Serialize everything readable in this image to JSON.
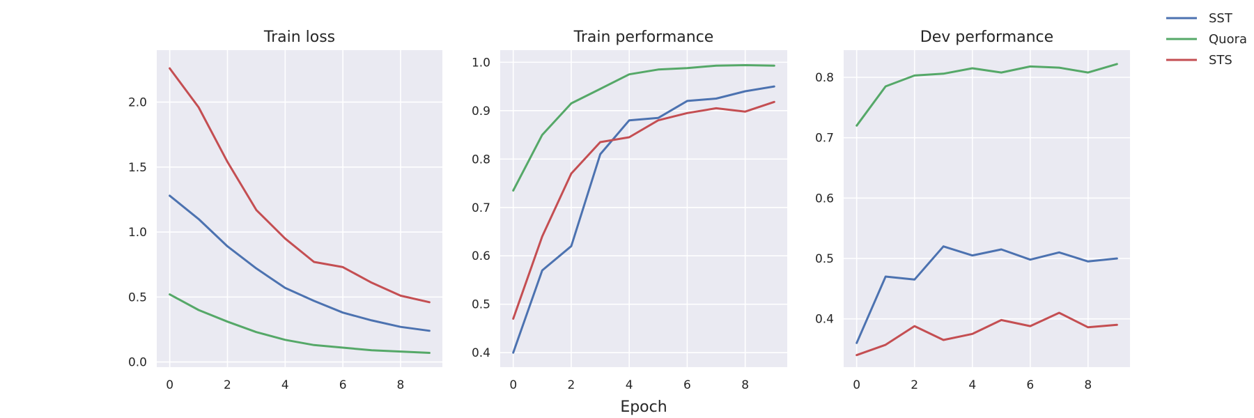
{
  "chart_data": [
    {
      "type": "line",
      "title": "Train loss",
      "xlabel": "",
      "ylabel": "",
      "x": [
        0,
        1,
        2,
        3,
        4,
        5,
        6,
        7,
        8,
        9
      ],
      "xlim": [
        -0.45,
        9.45
      ],
      "ylim": [
        -0.04,
        2.4
      ],
      "xticks": [
        0,
        2,
        4,
        6,
        8
      ],
      "yticks": [
        0.0,
        0.5,
        1.0,
        1.5,
        2.0
      ],
      "ytick_labels": [
        "0.0",
        "0.5",
        "1.0",
        "1.5",
        "2.0"
      ],
      "grid": true,
      "series": [
        {
          "name": "SST",
          "color": "#4c72b0",
          "values": [
            1.28,
            1.1,
            0.89,
            0.72,
            0.57,
            0.47,
            0.38,
            0.32,
            0.27,
            0.24
          ]
        },
        {
          "name": "Quora",
          "color": "#55a868",
          "values": [
            0.52,
            0.4,
            0.31,
            0.23,
            0.17,
            0.13,
            0.11,
            0.09,
            0.08,
            0.07
          ]
        },
        {
          "name": "STS",
          "color": "#c44e52",
          "values": [
            2.26,
            1.96,
            1.54,
            1.17,
            0.95,
            0.77,
            0.73,
            0.61,
            0.51,
            0.46
          ]
        }
      ]
    },
    {
      "type": "line",
      "title": "Train performance",
      "xlabel": "Epoch",
      "ylabel": "",
      "x": [
        0,
        1,
        2,
        3,
        4,
        5,
        6,
        7,
        8,
        9
      ],
      "xlim": [
        -0.45,
        9.45
      ],
      "ylim": [
        0.37,
        1.025
      ],
      "xticks": [
        0,
        2,
        4,
        6,
        8
      ],
      "yticks": [
        0.4,
        0.5,
        0.6,
        0.7,
        0.8,
        0.9,
        1.0
      ],
      "ytick_labels": [
        "0.4",
        "0.5",
        "0.6",
        "0.7",
        "0.8",
        "0.9",
        "1.0"
      ],
      "grid": true,
      "series": [
        {
          "name": "SST",
          "color": "#4c72b0",
          "values": [
            0.4,
            0.57,
            0.62,
            0.81,
            0.88,
            0.885,
            0.92,
            0.925,
            0.94,
            0.95
          ]
        },
        {
          "name": "Quora",
          "color": "#55a868",
          "values": [
            0.735,
            0.85,
            0.915,
            0.945,
            0.975,
            0.985,
            0.988,
            0.993,
            0.994,
            0.993
          ]
        },
        {
          "name": "STS",
          "color": "#c44e52",
          "values": [
            0.47,
            0.64,
            0.77,
            0.835,
            0.845,
            0.88,
            0.895,
            0.905,
            0.898,
            0.918
          ]
        }
      ]
    },
    {
      "type": "line",
      "title": "Dev performance",
      "xlabel": "",
      "ylabel": "",
      "x": [
        0,
        1,
        2,
        3,
        4,
        5,
        6,
        7,
        8,
        9
      ],
      "xlim": [
        -0.45,
        9.45
      ],
      "ylim": [
        0.32,
        0.845
      ],
      "xticks": [
        0,
        2,
        4,
        6,
        8
      ],
      "yticks": [
        0.4,
        0.5,
        0.6,
        0.7,
        0.8
      ],
      "ytick_labels": [
        "0.4",
        "0.5",
        "0.6",
        "0.7",
        "0.8"
      ],
      "grid": true,
      "series": [
        {
          "name": "SST",
          "color": "#4c72b0",
          "values": [
            0.36,
            0.47,
            0.465,
            0.52,
            0.505,
            0.515,
            0.498,
            0.51,
            0.495,
            0.5
          ]
        },
        {
          "name": "Quora",
          "color": "#55a868",
          "values": [
            0.72,
            0.785,
            0.803,
            0.806,
            0.815,
            0.808,
            0.818,
            0.816,
            0.808,
            0.822
          ]
        },
        {
          "name": "STS",
          "color": "#c44e52",
          "values": [
            0.34,
            0.357,
            0.388,
            0.365,
            0.375,
            0.398,
            0.388,
            0.41,
            0.386,
            0.39
          ]
        }
      ]
    }
  ],
  "legend": {
    "placement": "top-right",
    "items": [
      {
        "label": "SST",
        "color": "#4c72b0"
      },
      {
        "label": "Quora",
        "color": "#55a868"
      },
      {
        "label": "STS",
        "color": "#c44e52"
      }
    ]
  },
  "colors": {
    "plot_background": "#eaeaf2",
    "grid": "#ffffff",
    "text": "#262626"
  }
}
